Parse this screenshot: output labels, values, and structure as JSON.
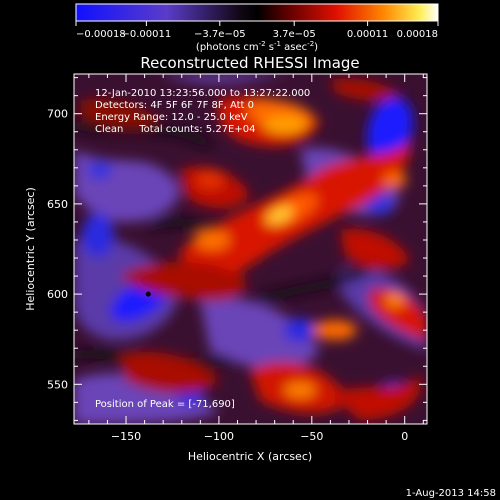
{
  "chart_data": {
    "type": "heatmap",
    "title": "Reconstructed RHESSI Image",
    "xlabel": "Heliocentric X (arcsec)",
    "ylabel": "Heliocentric Y (arcsec)",
    "xlim": [
      -178,
      12
    ],
    "ylim": [
      528,
      722
    ],
    "x_ticks": [
      -150,
      -100,
      -50,
      0
    ],
    "y_ticks": [
      550,
      600,
      650,
      700
    ],
    "colorbar": {
      "range": [
        -0.00018,
        0.00018
      ],
      "tick_labels": [
        "-0.00018",
        "-0.00011",
        "-3.7e-05",
        "3.7e-05",
        "0.00011",
        "0.00018"
      ],
      "unit_label": "(photons cm-2 s-1 asec-2)"
    },
    "info_lines": [
      "12-Jan-2010 13:23:56.000 to 13:27:22.000",
      "Detectors: 4F 5F 6F 7F 8F, Att 0",
      "Energy Range: 12.0 - 25.0 keV",
      "Clean     Total counts: 5.27E+04"
    ],
    "peak_label": "Position of Peak = [-71,690]",
    "min_marker": {
      "x": -138,
      "y": 600
    },
    "colors": {
      "min": "#0000ff",
      "mid": "#000000",
      "max": "#ffffff"
    }
  },
  "footer": {
    "timestamp": "1-Aug-2013 14:58"
  }
}
